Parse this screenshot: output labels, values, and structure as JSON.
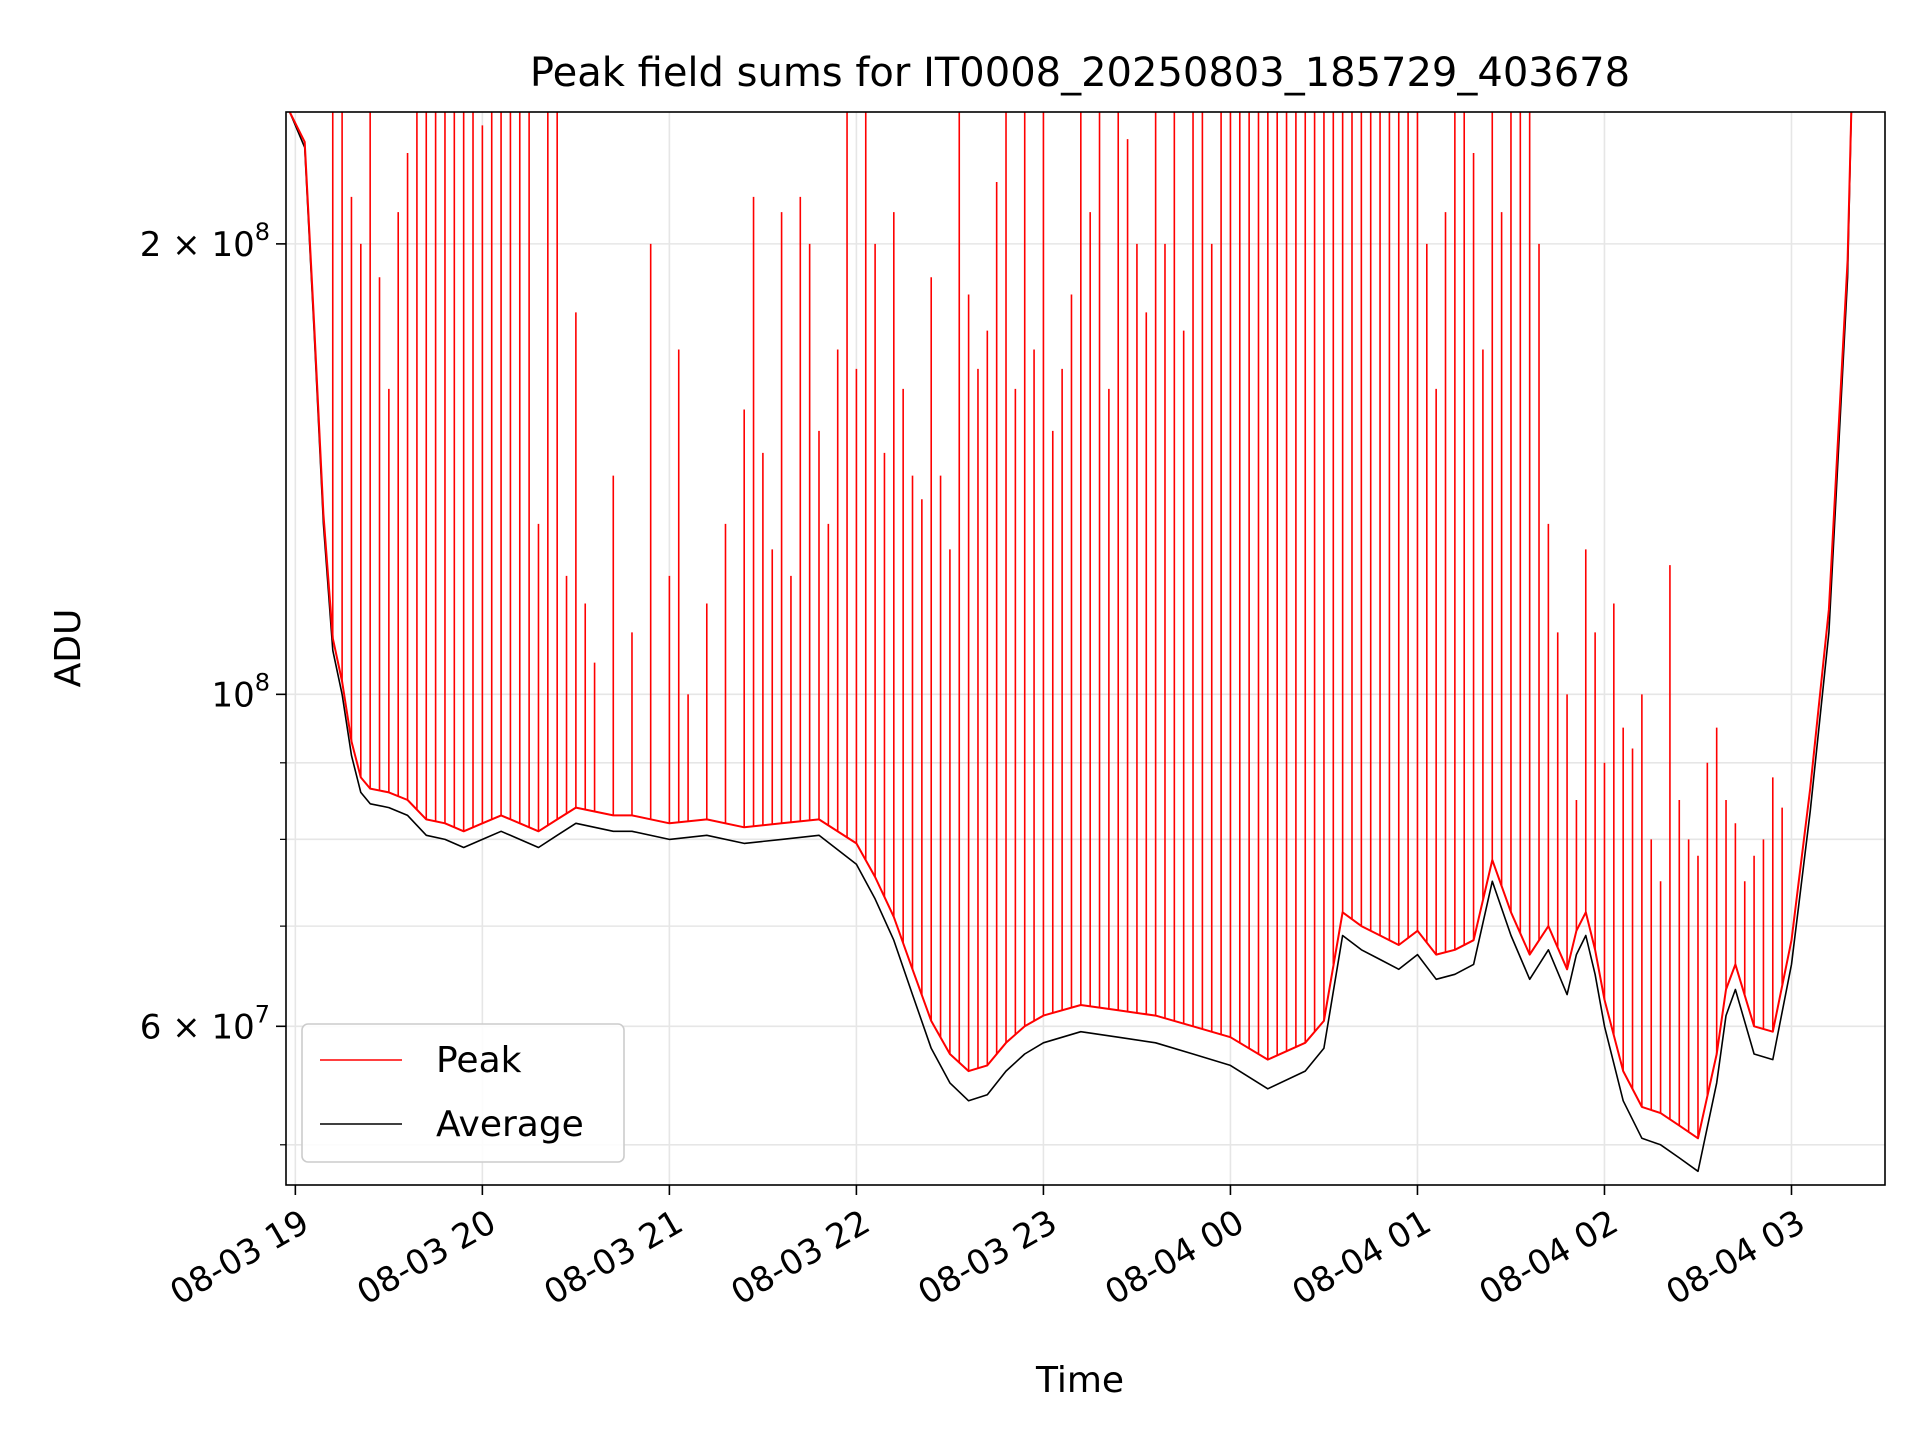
{
  "chart_data": {
    "type": "line",
    "title": "Peak field sums for IT0008_20250803_185729_403678",
    "xlabel": "Time",
    "ylabel": "ADU",
    "y_scale": "log",
    "ylim": [
      47000000,
      245000000
    ],
    "x_hour_range": [
      18.95,
      27.5
    ],
    "grid": true,
    "legend": "lower left",
    "x_ticks": [
      {
        "hour": 19,
        "label": "08-03 19"
      },
      {
        "hour": 20,
        "label": "08-03 20"
      },
      {
        "hour": 21,
        "label": "08-03 21"
      },
      {
        "hour": 22,
        "label": "08-03 22"
      },
      {
        "hour": 23,
        "label": "08-03 23"
      },
      {
        "hour": 24,
        "label": "08-04 00"
      },
      {
        "hour": 25,
        "label": "08-04 01"
      },
      {
        "hour": 26,
        "label": "08-04 02"
      },
      {
        "hour": 27,
        "label": "08-04 03"
      }
    ],
    "y_ticks": [
      {
        "value": 60000000,
        "label_base": "6 × 10",
        "label_exp": "7"
      },
      {
        "value": 100000000,
        "label_base": "10",
        "label_exp": "8"
      },
      {
        "value": 200000000,
        "label_base": "2 × 10",
        "label_exp": "8"
      }
    ],
    "y_minor_ticks": [
      50000000,
      70000000,
      80000000,
      90000000
    ],
    "series": [
      {
        "name": "Average",
        "color": "#000000",
        "x_hours": [
          18.97,
          19.05,
          19.1,
          19.15,
          19.2,
          19.25,
          19.3,
          19.35,
          19.4,
          19.5,
          19.6,
          19.7,
          19.8,
          19.9,
          20.0,
          20.1,
          20.2,
          20.3,
          20.4,
          20.5,
          20.6,
          20.7,
          20.8,
          21.0,
          21.2,
          21.4,
          21.6,
          21.8,
          22.0,
          22.1,
          22.2,
          22.3,
          22.4,
          22.5,
          22.6,
          22.7,
          22.8,
          22.9,
          23.0,
          23.2,
          23.4,
          23.6,
          23.8,
          24.0,
          24.2,
          24.4,
          24.5,
          24.6,
          24.7,
          24.8,
          24.9,
          25.0,
          25.1,
          25.2,
          25.3,
          25.4,
          25.5,
          25.6,
          25.7,
          25.8,
          25.85,
          25.9,
          25.95,
          26.0,
          26.1,
          26.2,
          26.3,
          26.4,
          26.5,
          26.6,
          26.65,
          26.7,
          26.8,
          26.9,
          27.0,
          27.1,
          27.2,
          27.3,
          27.32
        ],
        "values": [
          245000000,
          232000000,
          175000000,
          130000000,
          107000000,
          100000000,
          91000000,
          86000000,
          84500000,
          84000000,
          83000000,
          80500000,
          80000000,
          79000000,
          80000000,
          81000000,
          80000000,
          79000000,
          80500000,
          82000000,
          81500000,
          81000000,
          81000000,
          80000000,
          80500000,
          79500000,
          80000000,
          80500000,
          77000000,
          73000000,
          68500000,
          63000000,
          58000000,
          55000000,
          53500000,
          54000000,
          56000000,
          57500000,
          58500000,
          59500000,
          59000000,
          58500000,
          57500000,
          56500000,
          54500000,
          56000000,
          58000000,
          69000000,
          67500000,
          66500000,
          65500000,
          67000000,
          64500000,
          65000000,
          66000000,
          75000000,
          69000000,
          64500000,
          67500000,
          63000000,
          67000000,
          69000000,
          65000000,
          60000000,
          53500000,
          50500000,
          50000000,
          49000000,
          48000000,
          55000000,
          61000000,
          63500000,
          57500000,
          57000000,
          66000000,
          83500000,
          110000000,
          190000000,
          245000000
        ]
      },
      {
        "name": "Peak",
        "color": "#ff0000",
        "x_hours": [
          18.97,
          19.05,
          19.1,
          19.15,
          19.2,
          19.25,
          19.3,
          19.35,
          19.4,
          19.5,
          19.6,
          19.7,
          19.8,
          19.9,
          20.0,
          20.1,
          20.2,
          20.3,
          20.4,
          20.5,
          20.6,
          20.7,
          20.8,
          21.0,
          21.2,
          21.4,
          21.6,
          21.8,
          22.0,
          22.1,
          22.2,
          22.3,
          22.4,
          22.5,
          22.6,
          22.7,
          22.8,
          22.9,
          23.0,
          23.2,
          23.4,
          23.6,
          23.8,
          24.0,
          24.2,
          24.4,
          24.5,
          24.6,
          24.7,
          24.8,
          24.9,
          25.0,
          25.1,
          25.2,
          25.3,
          25.4,
          25.5,
          25.6,
          25.7,
          25.8,
          25.85,
          25.9,
          25.95,
          26.0,
          26.1,
          26.2,
          26.3,
          26.4,
          26.5,
          26.6,
          26.65,
          26.7,
          26.8,
          26.9,
          27.0,
          27.1,
          27.2,
          27.3,
          27.32
        ],
        "values": [
          245000000,
          234000000,
          177000000,
          132000000,
          109000000,
          102000000,
          93000000,
          88000000,
          86500000,
          86000000,
          85000000,
          82500000,
          82000000,
          81000000,
          82000000,
          83000000,
          82000000,
          81000000,
          82500000,
          84000000,
          83500000,
          83000000,
          83000000,
          82000000,
          82500000,
          81500000,
          82000000,
          82500000,
          79500000,
          75500000,
          71000000,
          65500000,
          60500000,
          57500000,
          56000000,
          56500000,
          58500000,
          60000000,
          61000000,
          62000000,
          61500000,
          61000000,
          60000000,
          59000000,
          57000000,
          58500000,
          60500000,
          71500000,
          70000000,
          69000000,
          68000000,
          69500000,
          67000000,
          67500000,
          68500000,
          77500000,
          71500000,
          67000000,
          70000000,
          65500000,
          69500000,
          71500000,
          67500000,
          62500000,
          56000000,
          53000000,
          52500000,
          51500000,
          50500000,
          57500000,
          63500000,
          66000000,
          60000000,
          59500000,
          68500000,
          86500000,
          114000000,
          195000000,
          245000000
        ],
        "spikes": [
          [
            19.2,
            245000000
          ],
          [
            19.25,
            245000000
          ],
          [
            19.3,
            215000000
          ],
          [
            19.35,
            200000000
          ],
          [
            19.4,
            245000000
          ],
          [
            19.45,
            190000000
          ],
          [
            19.5,
            160000000
          ],
          [
            19.55,
            210000000
          ],
          [
            19.6,
            230000000
          ],
          [
            19.65,
            245000000
          ],
          [
            19.7,
            245000000
          ],
          [
            19.75,
            245000000
          ],
          [
            19.8,
            245000000
          ],
          [
            19.85,
            245000000
          ],
          [
            19.9,
            245000000
          ],
          [
            19.95,
            245000000
          ],
          [
            20.0,
            240000000
          ],
          [
            20.05,
            245000000
          ],
          [
            20.1,
            245000000
          ],
          [
            20.15,
            245000000
          ],
          [
            20.2,
            245000000
          ],
          [
            20.25,
            245000000
          ],
          [
            20.3,
            130000000
          ],
          [
            20.35,
            245000000
          ],
          [
            20.4,
            245000000
          ],
          [
            20.45,
            120000000
          ],
          [
            20.5,
            180000000
          ],
          [
            20.55,
            115000000
          ],
          [
            20.6,
            105000000
          ],
          [
            20.7,
            140000000
          ],
          [
            20.8,
            110000000
          ],
          [
            20.9,
            200000000
          ],
          [
            21.0,
            120000000
          ],
          [
            21.05,
            170000000
          ],
          [
            21.1,
            100000000
          ],
          [
            21.2,
            115000000
          ],
          [
            21.3,
            130000000
          ],
          [
            21.4,
            155000000
          ],
          [
            21.45,
            215000000
          ],
          [
            21.5,
            145000000
          ],
          [
            21.55,
            125000000
          ],
          [
            21.6,
            210000000
          ],
          [
            21.65,
            120000000
          ],
          [
            21.7,
            215000000
          ],
          [
            21.75,
            200000000
          ],
          [
            21.8,
            150000000
          ],
          [
            21.85,
            130000000
          ],
          [
            21.9,
            170000000
          ],
          [
            21.95,
            245000000
          ],
          [
            22.0,
            165000000
          ],
          [
            22.05,
            245000000
          ],
          [
            22.1,
            200000000
          ],
          [
            22.15,
            145000000
          ],
          [
            22.2,
            210000000
          ],
          [
            22.25,
            160000000
          ],
          [
            22.3,
            140000000
          ],
          [
            22.35,
            135000000
          ],
          [
            22.4,
            190000000
          ],
          [
            22.45,
            140000000
          ],
          [
            22.5,
            125000000
          ],
          [
            22.55,
            245000000
          ],
          [
            22.6,
            185000000
          ],
          [
            22.65,
            165000000
          ],
          [
            22.7,
            175000000
          ],
          [
            22.75,
            220000000
          ],
          [
            22.8,
            245000000
          ],
          [
            22.85,
            160000000
          ],
          [
            22.9,
            245000000
          ],
          [
            22.95,
            170000000
          ],
          [
            23.0,
            245000000
          ],
          [
            23.05,
            150000000
          ],
          [
            23.1,
            165000000
          ],
          [
            23.15,
            185000000
          ],
          [
            23.2,
            245000000
          ],
          [
            23.25,
            210000000
          ],
          [
            23.3,
            245000000
          ],
          [
            23.35,
            160000000
          ],
          [
            23.4,
            245000000
          ],
          [
            23.45,
            235000000
          ],
          [
            23.5,
            200000000
          ],
          [
            23.55,
            180000000
          ],
          [
            23.6,
            245000000
          ],
          [
            23.65,
            200000000
          ],
          [
            23.7,
            245000000
          ],
          [
            23.75,
            175000000
          ],
          [
            23.8,
            245000000
          ],
          [
            23.85,
            245000000
          ],
          [
            23.9,
            200000000
          ],
          [
            23.95,
            245000000
          ],
          [
            24.0,
            245000000
          ],
          [
            24.05,
            245000000
          ],
          [
            24.1,
            245000000
          ],
          [
            24.15,
            245000000
          ],
          [
            24.2,
            245000000
          ],
          [
            24.25,
            245000000
          ],
          [
            24.3,
            245000000
          ],
          [
            24.35,
            245000000
          ],
          [
            24.4,
            245000000
          ],
          [
            24.45,
            245000000
          ],
          [
            24.5,
            245000000
          ],
          [
            24.55,
            245000000
          ],
          [
            24.6,
            245000000
          ],
          [
            24.65,
            245000000
          ],
          [
            24.7,
            245000000
          ],
          [
            24.75,
            245000000
          ],
          [
            24.8,
            245000000
          ],
          [
            24.85,
            245000000
          ],
          [
            24.9,
            245000000
          ],
          [
            24.95,
            245000000
          ],
          [
            25.0,
            245000000
          ],
          [
            25.05,
            200000000
          ],
          [
            25.1,
            160000000
          ],
          [
            25.15,
            210000000
          ],
          [
            25.2,
            245000000
          ],
          [
            25.25,
            245000000
          ],
          [
            25.3,
            230000000
          ],
          [
            25.35,
            170000000
          ],
          [
            25.4,
            245000000
          ],
          [
            25.45,
            210000000
          ],
          [
            25.5,
            245000000
          ],
          [
            25.55,
            245000000
          ],
          [
            25.6,
            245000000
          ],
          [
            25.65,
            200000000
          ],
          [
            25.7,
            130000000
          ],
          [
            25.75,
            110000000
          ],
          [
            25.8,
            100000000
          ],
          [
            25.85,
            85000000
          ],
          [
            25.9,
            125000000
          ],
          [
            25.95,
            110000000
          ],
          [
            26.0,
            90000000
          ],
          [
            26.05,
            115000000
          ],
          [
            26.1,
            95000000
          ],
          [
            26.15,
            92000000
          ],
          [
            26.2,
            100000000
          ],
          [
            26.25,
            80000000
          ],
          [
            26.3,
            75000000
          ],
          [
            26.35,
            122000000
          ],
          [
            26.4,
            85000000
          ],
          [
            26.45,
            80000000
          ],
          [
            26.5,
            78000000
          ],
          [
            26.55,
            90000000
          ],
          [
            26.6,
            95000000
          ],
          [
            26.65,
            85000000
          ],
          [
            26.7,
            82000000
          ],
          [
            26.75,
            75000000
          ],
          [
            26.8,
            78000000
          ],
          [
            26.85,
            80000000
          ],
          [
            26.9,
            88000000
          ],
          [
            26.95,
            84000000
          ]
        ]
      }
    ]
  }
}
